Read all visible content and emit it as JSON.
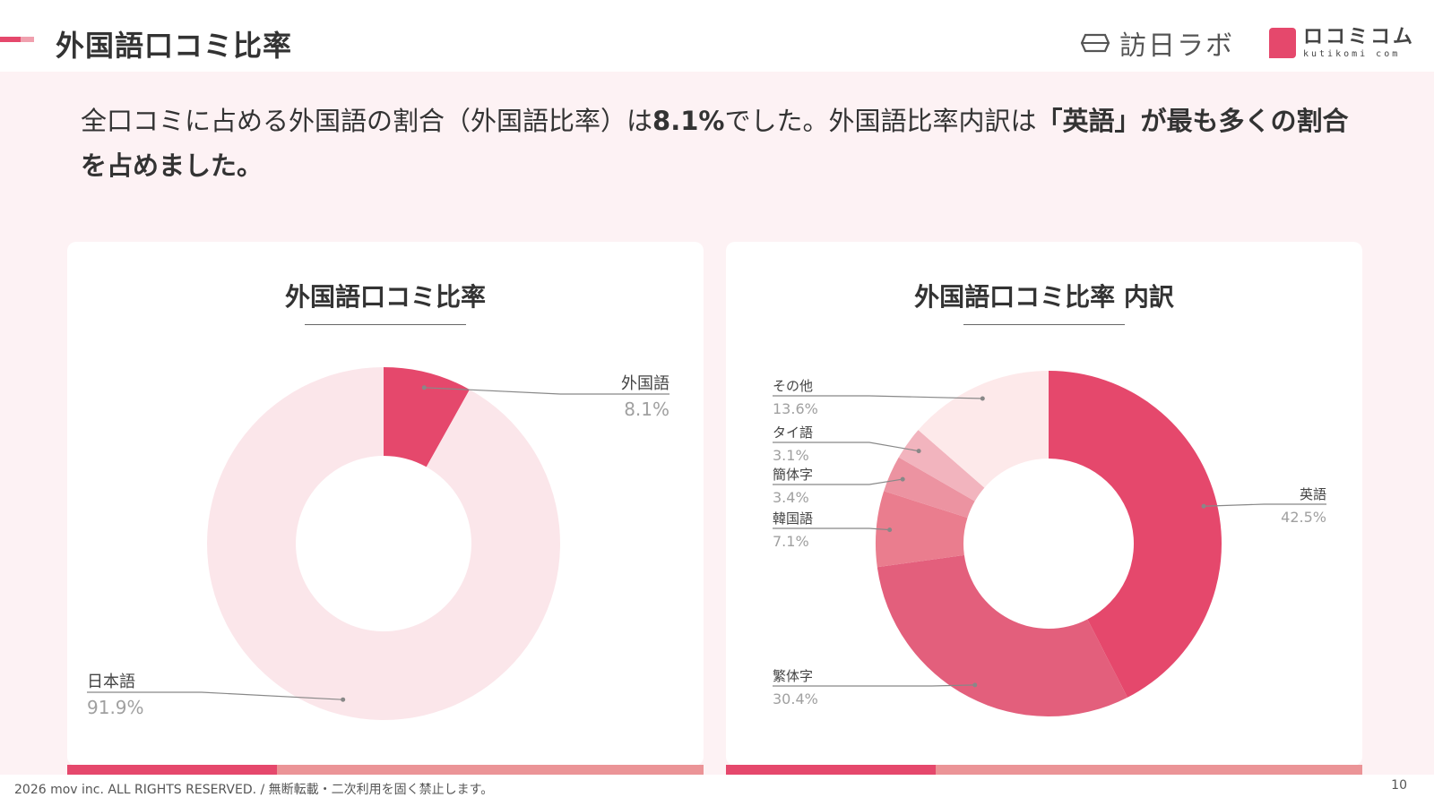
{
  "header": {
    "title": "外国語口コミ比率",
    "logo1_text": "訪日ラボ",
    "logo2_text": "ロコミコム",
    "logo2_sub": "kutikomi com"
  },
  "lead": {
    "text_before": "全口コミに占める外国語の割合（外国語比率）は",
    "bold_pct": "8.1%",
    "text_middle": "でした。外国語比率内訳は",
    "bold_lang": "「英語」が最も多くの割合を占めました。"
  },
  "chart_data": [
    {
      "type": "pie",
      "title": "外国語口コミ比率",
      "donut": true,
      "slices": [
        {
          "label": "外国語",
          "value": 8.1,
          "display": "8.1%",
          "color": "#e5486c"
        },
        {
          "label": "日本語",
          "value": 91.9,
          "display": "91.9%",
          "color": "#fbe6ea"
        }
      ]
    },
    {
      "type": "pie",
      "title": "外国語口コミ比率 内訳",
      "donut": true,
      "slices": [
        {
          "label": "英語",
          "value": 42.5,
          "display": "42.5%",
          "color": "#e5486c"
        },
        {
          "label": "繁体字",
          "value": 30.4,
          "display": "30.4%",
          "color": "#e35f7c"
        },
        {
          "label": "韓国語",
          "value": 7.1,
          "display": "7.1%",
          "color": "#ea7d8e"
        },
        {
          "label": "簡体字",
          "value": 3.4,
          "display": "3.4%",
          "color": "#ec93a1"
        },
        {
          "label": "タイ語",
          "value": 3.1,
          "display": "3.1%",
          "color": "#f2b4be"
        },
        {
          "label": "その他",
          "value": 13.6,
          "display": "13.6%",
          "color": "#fde9ea"
        }
      ]
    }
  ],
  "footer": {
    "copyright": "2026 mov inc. ALL RIGHTS RESERVED. / 無断転載・二次利用を固く禁止します。",
    "page": "10"
  }
}
